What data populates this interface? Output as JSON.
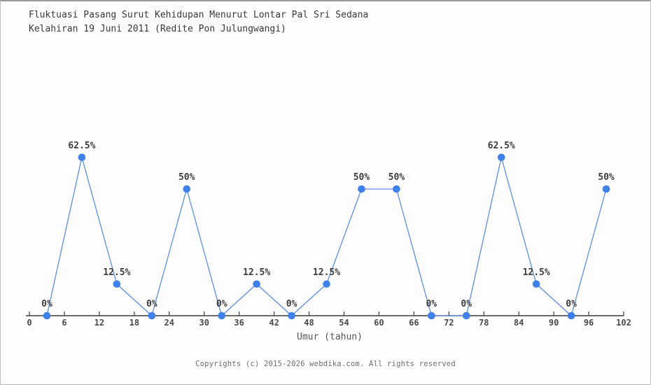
{
  "title": {
    "line1": "Fluktuasi Pasang Surut Kehidupan Menurut Lontar Pal Sri Sedana",
    "line2": "Kelahiran 19 Juni 2011 (Redite Pon Julungwangi)"
  },
  "footer": {
    "copyright": "Copyrights (c) 2015-2026 webdika.com. All rights reserved"
  },
  "colors": {
    "background": "#fdfdfd",
    "title_text": "#383838",
    "axis": "#3c3c3c",
    "tick_label": "#4a4a4a",
    "point_label": "#3c3c3c",
    "series_line": "#5b8de8",
    "marker_fill": "#3f80ea",
    "xlabel_text": "#555555",
    "footer_text": "#6e6e6e"
  },
  "chart_data": {
    "type": "line",
    "title": "Fluktuasi Pasang Surut Kehidupan Menurut Lontar Pal Sri Sedana Kelahiran 19 Juni 2011 (Redite Pon Julungwangi)",
    "xlabel": "Umur (tahun)",
    "ylabel": "",
    "x": [
      3,
      9,
      15,
      21,
      27,
      33,
      39,
      45,
      51,
      57,
      63,
      69,
      75,
      81,
      87,
      93,
      99
    ],
    "values": [
      0,
      62.5,
      12.5,
      0,
      50,
      0,
      12.5,
      0,
      12.5,
      50,
      50,
      0,
      0,
      62.5,
      12.5,
      0,
      50
    ],
    "point_labels": [
      "0%",
      "62.5%",
      "12.5%",
      "0%",
      "50%",
      "0%",
      "12.5%",
      "0%",
      "12.5%",
      "50%",
      "50%",
      "0%",
      "0%",
      "62.5%",
      "12.5%",
      "0%",
      "50%"
    ],
    "x_ticks": [
      0,
      6,
      12,
      18,
      24,
      30,
      36,
      42,
      48,
      54,
      60,
      66,
      72,
      78,
      84,
      90,
      96,
      102
    ],
    "xlim": [
      0,
      102
    ],
    "ylim": [
      0,
      100
    ],
    "grid": false,
    "legend": null,
    "marker": "circle"
  }
}
